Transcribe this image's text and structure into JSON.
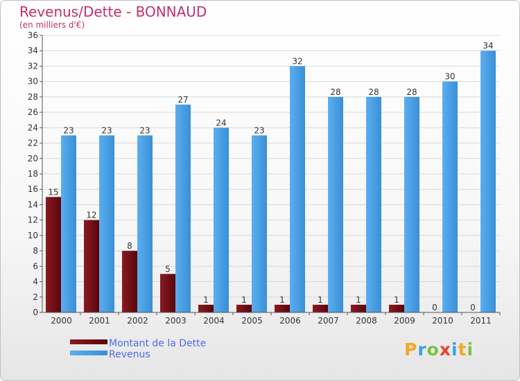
{
  "title": "Revenus/Dette - BONNAUD",
  "subtitle": "(en milliers d'€)",
  "logo": {
    "letters": [
      {
        "ch": "P",
        "color": "#f5a623"
      },
      {
        "ch": "r",
        "color": "#3aa0e8"
      },
      {
        "ch": "o",
        "color": "#7cc242"
      },
      {
        "ch": "x",
        "color": "#e8432f"
      },
      {
        "ch": "i",
        "color": "#3aa0e8"
      },
      {
        "ch": "t",
        "color": "#f5a623"
      },
      {
        "ch": "i",
        "color": "#7cc242"
      }
    ]
  },
  "colors": {
    "debt": "#6e0a12",
    "revenue": "#3f98e0",
    "axis": "#555555",
    "grid": "#d9d9d9"
  },
  "chart_data": {
    "type": "bar",
    "categories": [
      "2000",
      "2001",
      "2002",
      "2003",
      "2004",
      "2005",
      "2006",
      "2007",
      "2008",
      "2009",
      "2010",
      "2011"
    ],
    "series": [
      {
        "name": "Montant de la Dette",
        "values": [
          15,
          12,
          8,
          5,
          1,
          1,
          1,
          1,
          1,
          1,
          0,
          0
        ]
      },
      {
        "name": "Revenus",
        "values": [
          23,
          23,
          23,
          27,
          24,
          23,
          32,
          28,
          28,
          28,
          30,
          34
        ]
      }
    ],
    "yticks": [
      0,
      2,
      4,
      6,
      8,
      10,
      12,
      14,
      16,
      18,
      20,
      22,
      24,
      26,
      28,
      30,
      32,
      34,
      36
    ],
    "ylim": [
      0,
      36
    ],
    "grid": true,
    "legend_position": "bottom-left"
  }
}
